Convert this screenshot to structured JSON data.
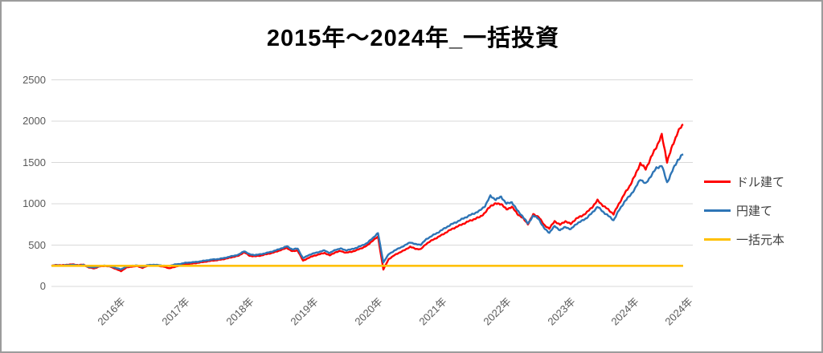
{
  "window": {
    "background": "#FFFFFF",
    "border_color": "#9C9C9C"
  },
  "chart": {
    "title": "2015年～2024年_一括投資",
    "axis_style": {
      "grid_color": "#D9D9D9",
      "tick_text_color": "#595959"
    },
    "legend": {
      "position": "right",
      "items": [
        {
          "label": "ドル建て",
          "color": "#FF0000"
        },
        {
          "label": "円建て",
          "color": "#2E75B6"
        },
        {
          "label": "一括元本",
          "color": "#FFC000"
        }
      ]
    }
  },
  "chart_data": {
    "type": "line",
    "title": "2015年～2024年_一括投資",
    "x_start": "2015-01",
    "x_interval": "monthly",
    "ylim": [
      0,
      2500
    ],
    "grid": "horizontal",
    "legend_position": "right",
    "y_ticks": [
      0,
      500,
      1000,
      1500,
      2000,
      2500
    ],
    "x_ticks": [
      {
        "label": "2016年",
        "month_index": 12
      },
      {
        "label": "2017年",
        "month_index": 24
      },
      {
        "label": "2018年",
        "month_index": 36
      },
      {
        "label": "2019年",
        "month_index": 48
      },
      {
        "label": "2020年",
        "month_index": 60
      },
      {
        "label": "2021年",
        "month_index": 72
      },
      {
        "label": "2022年",
        "month_index": 84
      },
      {
        "label": "2023年",
        "month_index": 96
      },
      {
        "label": "2024年",
        "month_index": 108
      },
      {
        "label": "2024年",
        "month_index": 118
      }
    ],
    "series": [
      {
        "name": "ドル建て",
        "color": "#FF0000",
        "values": [
          250,
          260,
          256,
          263,
          266,
          258,
          263,
          228,
          218,
          242,
          248,
          240,
          212,
          185,
          228,
          240,
          246,
          225,
          250,
          254,
          250,
          238,
          220,
          235,
          255,
          268,
          275,
          282,
          292,
          302,
          312,
          318,
          328,
          342,
          358,
          372,
          415,
          370,
          365,
          372,
          388,
          402,
          420,
          445,
          465,
          425,
          435,
          310,
          345,
          370,
          388,
          405,
          375,
          412,
          428,
          408,
          418,
          438,
          465,
          495,
          555,
          600,
          205,
          330,
          375,
          410,
          440,
          480,
          455,
          450,
          515,
          555,
          590,
          625,
          665,
          700,
          730,
          760,
          790,
          815,
          840,
          890,
          975,
          1000,
          1000,
          930,
          965,
          880,
          830,
          755,
          870,
          845,
          745,
          700,
          790,
          745,
          790,
          755,
          820,
          850,
          895,
          960,
          1040,
          980,
          930,
          875,
          1000,
          1115,
          1215,
          1340,
          1490,
          1420,
          1560,
          1690,
          1830,
          1510,
          1700,
          1870,
          1960
        ]
      },
      {
        "name": "円建て",
        "color": "#2E75B6",
        "values": [
          250,
          255,
          252,
          258,
          261,
          254,
          259,
          235,
          228,
          247,
          252,
          246,
          225,
          205,
          242,
          250,
          254,
          238,
          258,
          262,
          258,
          250,
          248,
          265,
          272,
          285,
          290,
          296,
          305,
          315,
          325,
          330,
          340,
          355,
          370,
          385,
          428,
          388,
          380,
          388,
          402,
          418,
          438,
          462,
          485,
          448,
          458,
          340,
          378,
          400,
          418,
          435,
          405,
          442,
          458,
          438,
          448,
          468,
          495,
          525,
          585,
          645,
          290,
          390,
          430,
          465,
          495,
          535,
          510,
          505,
          570,
          610,
          645,
          685,
          725,
          760,
          790,
          825,
          855,
          885,
          915,
          975,
          1095,
          1050,
          1085,
          1000,
          1020,
          920,
          850,
          760,
          855,
          820,
          705,
          650,
          730,
          680,
          720,
          690,
          755,
          790,
          830,
          890,
          965,
          905,
          855,
          800,
          920,
          1020,
          1095,
          1180,
          1300,
          1240,
          1340,
          1430,
          1465,
          1255,
          1400,
          1530,
          1600
        ]
      },
      {
        "name": "一括元本",
        "color": "#FFC000",
        "constant": 250
      }
    ]
  }
}
